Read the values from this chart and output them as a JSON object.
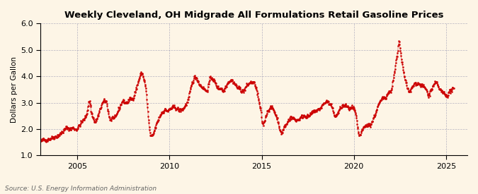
{
  "title": "Weekly Cleveland, OH Midgrade All Formulations Retail Gasoline Prices",
  "ylabel": "Dollars per Gallon",
  "source": "Source: U.S. Energy Information Administration",
  "line_color": "#cc0000",
  "bg_color": "#fdf5e6",
  "grid_color": "#8888aa",
  "ylim": [
    1.0,
    6.0
  ],
  "yticks": [
    1.0,
    2.0,
    3.0,
    4.0,
    5.0,
    6.0
  ],
  "xticks_years": [
    2005,
    2010,
    2015,
    2020,
    2025
  ],
  "figsize": [
    6.75,
    2.75
  ],
  "dpi": 100
}
